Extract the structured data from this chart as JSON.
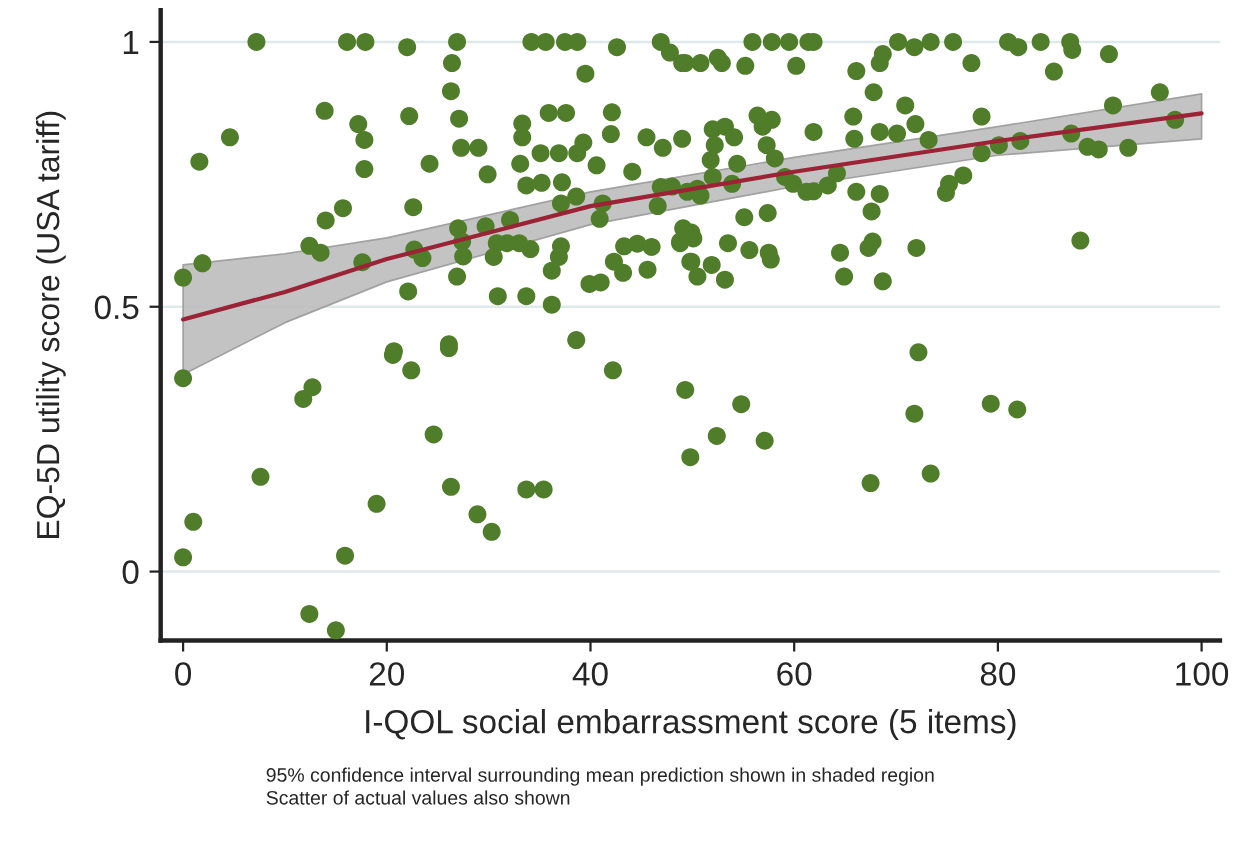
{
  "chart_data": {
    "type": "scatter",
    "xlabel": "I-QOL social embarrassment score (5 items)",
    "ylabel": "EQ-5D utility score (USA tariff)",
    "annotations": [
      "95% confidence interval surrounding mean prediction shown in shaded region",
      "Scatter of actual values also shown"
    ],
    "xlim": [
      -2.2,
      101.8
    ],
    "ylim": [
      -0.13,
      1.06
    ],
    "xticks": [
      0,
      20,
      40,
      60,
      80,
      100
    ],
    "yticks": [
      0,
      0.5,
      1
    ],
    "grid": "y",
    "legend": false,
    "series": [
      {
        "marker": "circle",
        "color": "#507d2a",
        "x": [
          7.2,
          16.1,
          17.9,
          22.0,
          26.9,
          26.4,
          26.3,
          34.2,
          35.6,
          37.5,
          38.7,
          42.6,
          46.9,
          47.8,
          49.0,
          39.5,
          13.9,
          17.2,
          17.8,
          22.2,
          27.1,
          4.6,
          1.6,
          17.8,
          24.2,
          27.3,
          29.0,
          29.9,
          33.3,
          33.3,
          35.9,
          37.6,
          35.1,
          36.9,
          38.7,
          39.3,
          33.1,
          40.6,
          42.1,
          42.0,
          45.5,
          47.1,
          49.0,
          44.1,
          33.7,
          35.2,
          37.2,
          38.6,
          37.1,
          41.2,
          40.9,
          46.9,
          48.0,
          46.6,
          15.7,
          14.0,
          22.6,
          32.1,
          29.7,
          27.0,
          27.4,
          27.5,
          12.4,
          13.5,
          22.7,
          23.5,
          17.6,
          1.9,
          0.0,
          30.8,
          31.8,
          33.0,
          34.1,
          30.5,
          37.1,
          36.9,
          36.2,
          39.9,
          41.0,
          43.3,
          44.6,
          46.0,
          42.3,
          43.2,
          45.6,
          48.8,
          49.9,
          49.9,
          22.1,
          26.9,
          30.9,
          33.7,
          36.2,
          38.6,
          20.7,
          26.1,
          49.5,
          55.9,
          57.8,
          59.5,
          61.4,
          61.9,
          70.2,
          71.8,
          73.4,
          75.6,
          81.0,
          82.0,
          84.2,
          87.1,
          87.3,
          90.9,
          49.3,
          50.8,
          52.5,
          52.9,
          55.2,
          60.2,
          66.1,
          68.4,
          68.7,
          77.4,
          85.5,
          67.8,
          70.9,
          65.8,
          56.4,
          57.8,
          52.0,
          53.2,
          54.1,
          52.2,
          56.9,
          57.3,
          61.9,
          58.1,
          65.9,
          68.4,
          70.1,
          71.9,
          73.2,
          78.4,
          78.4,
          80.1,
          82.2,
          87.2,
          88.8,
          89.9,
          92.8,
          91.3,
          95.9,
          97.4,
          51.8,
          54.4,
          52.0,
          53.9,
          50.5,
          50.8,
          59.1,
          59.9,
          61.2,
          61.9,
          63.3,
          64.2,
          66.1,
          68.4,
          67.6,
          75.2,
          74.9,
          76.6,
          55.1,
          57.4,
          49.1,
          50.1,
          48.8,
          53.5,
          55.6,
          57.5,
          57.7,
          49.8,
          51.9,
          50.5,
          53.2,
          64.5,
          64.9,
          67.3,
          67.7,
          72.0,
          68.7,
          88.1,
          0.0,
          11.8,
          12.7,
          20.6,
          22.4,
          26.1,
          42.2,
          49.3,
          49.8,
          24.6,
          26.3,
          7.6,
          1.0,
          0.0,
          19.0,
          15.9,
          28.9,
          30.3,
          33.7,
          35.4,
          12.4,
          15.0,
          54.8,
          52.4,
          57.1,
          72.2,
          71.8,
          67.5,
          73.4,
          79.3,
          81.9
        ],
        "values": [
          1.0,
          1.0,
          1.0,
          0.99,
          1.0,
          0.96,
          0.907,
          1.0,
          1.0,
          1.0,
          1.0,
          0.99,
          1.0,
          0.98,
          0.96,
          0.94,
          0.87,
          0.845,
          0.815,
          0.86,
          0.855,
          0.82,
          0.774,
          0.76,
          0.77,
          0.8,
          0.8,
          0.75,
          0.846,
          0.82,
          0.866,
          0.866,
          0.79,
          0.79,
          0.79,
          0.81,
          0.77,
          0.767,
          0.867,
          0.826,
          0.82,
          0.8,
          0.817,
          0.755,
          0.729,
          0.734,
          0.735,
          0.708,
          0.695,
          0.695,
          0.666,
          0.726,
          0.727,
          0.69,
          0.686,
          0.663,
          0.688,
          0.664,
          0.652,
          0.648,
          0.623,
          0.595,
          0.615,
          0.602,
          0.608,
          0.592,
          0.584,
          0.582,
          0.555,
          0.62,
          0.62,
          0.62,
          0.609,
          0.594,
          0.614,
          0.594,
          0.568,
          0.543,
          0.546,
          0.614,
          0.619,
          0.613,
          0.585,
          0.564,
          0.57,
          0.62,
          0.64,
          0.585,
          0.529,
          0.557,
          0.52,
          0.52,
          0.504,
          0.437,
          0.416,
          0.429,
          0.717,
          1.0,
          1.0,
          1.0,
          1.0,
          1.0,
          1.0,
          0.99,
          1.0,
          1.0,
          1.0,
          0.99,
          1.0,
          1.0,
          0.985,
          0.977,
          0.96,
          0.96,
          0.97,
          0.96,
          0.955,
          0.955,
          0.945,
          0.96,
          0.977,
          0.96,
          0.944,
          0.905,
          0.88,
          0.859,
          0.861,
          0.853,
          0.835,
          0.84,
          0.82,
          0.805,
          0.84,
          0.805,
          0.83,
          0.78,
          0.817,
          0.83,
          0.827,
          0.845,
          0.815,
          0.859,
          0.79,
          0.805,
          0.813,
          0.827,
          0.802,
          0.797,
          0.8,
          0.88,
          0.905,
          0.853,
          0.777,
          0.77,
          0.745,
          0.732,
          0.723,
          0.71,
          0.745,
          0.732,
          0.717,
          0.718,
          0.729,
          0.752,
          0.717,
          0.713,
          0.68,
          0.732,
          0.715,
          0.748,
          0.669,
          0.677,
          0.648,
          0.629,
          0.623,
          0.62,
          0.607,
          0.602,
          0.589,
          0.585,
          0.579,
          0.557,
          0.551,
          0.602,
          0.557,
          0.611,
          0.623,
          0.611,
          0.548,
          0.625,
          0.365,
          0.326,
          0.348,
          0.409,
          0.38,
          0.422,
          0.38,
          0.343,
          0.216,
          0.259,
          0.16,
          0.179,
          0.094,
          0.027,
          0.128,
          0.03,
          0.108,
          0.075,
          0.155,
          0.155,
          -0.08,
          -0.111,
          0.316,
          0.256,
          0.247,
          0.414,
          0.298,
          0.167,
          0.185,
          0.317,
          0.306
        ]
      },
      {
        "type": "line",
        "color": "#9b2335",
        "line_style": "solid",
        "x": [
          0,
          10,
          20,
          40,
          60,
          80,
          100
        ],
        "values": [
          0.476,
          0.528,
          0.59,
          0.69,
          0.755,
          0.813,
          0.865
        ],
        "lower": [
          0.372,
          0.47,
          0.547,
          0.655,
          0.727,
          0.786,
          0.817
        ],
        "upper": [
          0.579,
          0.6,
          0.63,
          0.717,
          0.782,
          0.84,
          0.902
        ]
      }
    ]
  }
}
